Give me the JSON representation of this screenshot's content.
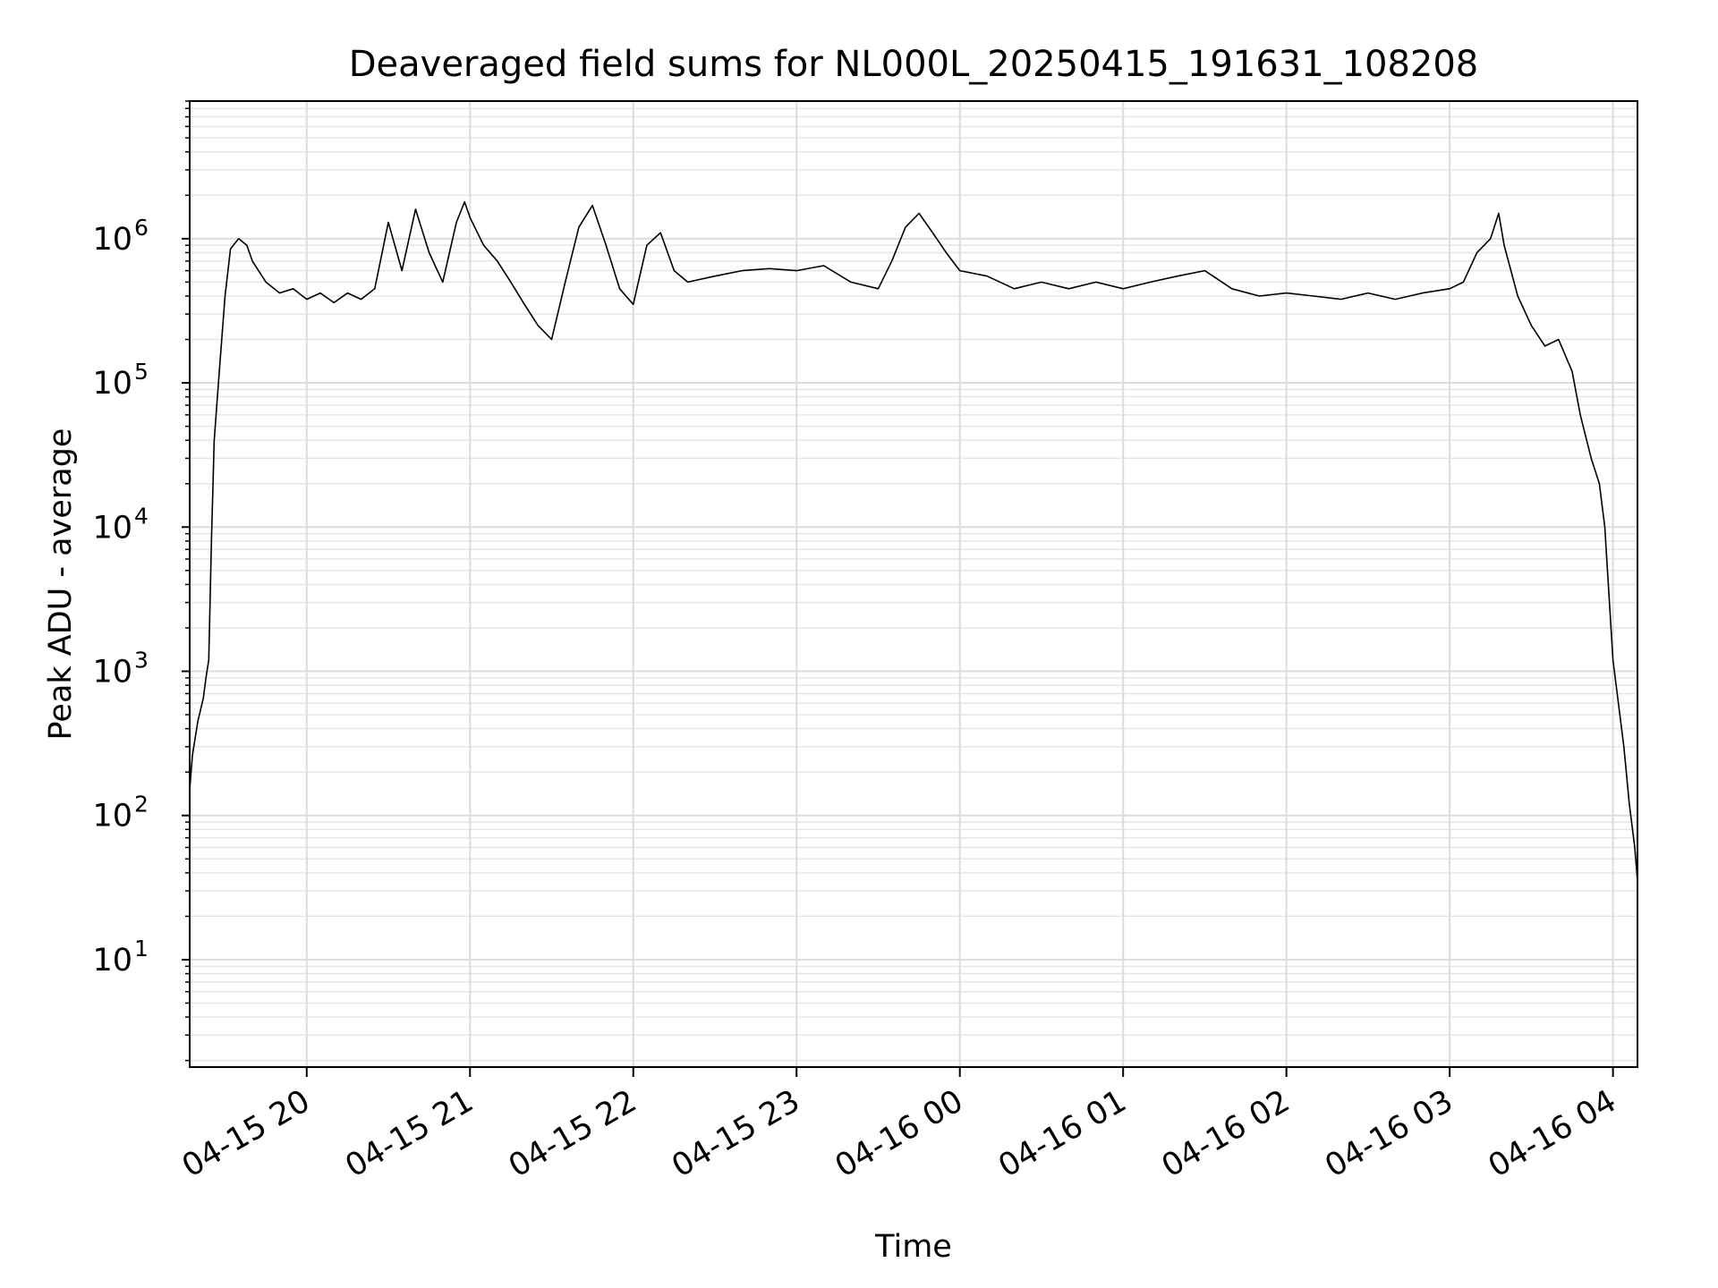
{
  "chart_data": {
    "type": "line",
    "title": "Deaveraged field sums for NL000L_20250415_191631_108208",
    "xlabel": "Time",
    "ylabel": "Peak ADU - average",
    "x_scale": "time",
    "y_scale": "log",
    "xlim": [
      "2025-04-15 19:17",
      "2025-04-16 04:09"
    ],
    "ylim": [
      1.8,
      9000000
    ],
    "x_ticks": [
      {
        "time": "2025-04-15 20:00",
        "label": "04-15 20"
      },
      {
        "time": "2025-04-15 21:00",
        "label": "04-15 21"
      },
      {
        "time": "2025-04-15 22:00",
        "label": "04-15 22"
      },
      {
        "time": "2025-04-15 23:00",
        "label": "04-15 23"
      },
      {
        "time": "2025-04-16 00:00",
        "label": "04-16 00"
      },
      {
        "time": "2025-04-16 01:00",
        "label": "04-16 01"
      },
      {
        "time": "2025-04-16 02:00",
        "label": "04-16 02"
      },
      {
        "time": "2025-04-16 03:00",
        "label": "04-16 03"
      },
      {
        "time": "2025-04-16 04:00",
        "label": "04-16 04"
      }
    ],
    "y_ticks": [
      {
        "value": 10,
        "base": "10",
        "exp": "1"
      },
      {
        "value": 100,
        "base": "10",
        "exp": "2"
      },
      {
        "value": 1000,
        "base": "10",
        "exp": "3"
      },
      {
        "value": 10000,
        "base": "10",
        "exp": "4"
      },
      {
        "value": 100000,
        "base": "10",
        "exp": "5"
      },
      {
        "value": 1000000,
        "base": "10",
        "exp": "6"
      }
    ],
    "grid": true,
    "series": [
      {
        "color": "#000000",
        "points": [
          [
            "2025-04-15 19:17",
            150
          ],
          [
            "2025-04-15 19:18",
            260
          ],
          [
            "2025-04-15 19:20",
            450
          ],
          [
            "2025-04-15 19:22",
            650
          ],
          [
            "2025-04-15 19:23",
            900
          ],
          [
            "2025-04-15 19:24",
            1200
          ],
          [
            "2025-04-15 19:25",
            8000
          ],
          [
            "2025-04-15 19:26",
            40000
          ],
          [
            "2025-04-15 19:28",
            130000
          ],
          [
            "2025-04-15 19:30",
            400000
          ],
          [
            "2025-04-15 19:32",
            850000
          ],
          [
            "2025-04-15 19:35",
            1000000
          ],
          [
            "2025-04-15 19:38",
            900000
          ],
          [
            "2025-04-15 19:40",
            700000
          ],
          [
            "2025-04-15 19:45",
            500000
          ],
          [
            "2025-04-15 19:50",
            420000
          ],
          [
            "2025-04-15 19:55",
            450000
          ],
          [
            "2025-04-15 20:00",
            380000
          ],
          [
            "2025-04-15 20:05",
            420000
          ],
          [
            "2025-04-15 20:10",
            360000
          ],
          [
            "2025-04-15 20:15",
            420000
          ],
          [
            "2025-04-15 20:20",
            380000
          ],
          [
            "2025-04-15 20:25",
            450000
          ],
          [
            "2025-04-15 20:30",
            1300000
          ],
          [
            "2025-04-15 20:35",
            600000
          ],
          [
            "2025-04-15 20:40",
            1600000
          ],
          [
            "2025-04-15 20:45",
            800000
          ],
          [
            "2025-04-15 20:50",
            500000
          ],
          [
            "2025-04-15 20:55",
            1300000
          ],
          [
            "2025-04-15 20:58",
            1800000
          ],
          [
            "2025-04-15 21:00",
            1400000
          ],
          [
            "2025-04-15 21:05",
            900000
          ],
          [
            "2025-04-15 21:10",
            700000
          ],
          [
            "2025-04-15 21:15",
            500000
          ],
          [
            "2025-04-15 21:20",
            350000
          ],
          [
            "2025-04-15 21:25",
            250000
          ],
          [
            "2025-04-15 21:30",
            200000
          ],
          [
            "2025-04-15 21:35",
            500000
          ],
          [
            "2025-04-15 21:40",
            1200000
          ],
          [
            "2025-04-15 21:45",
            1700000
          ],
          [
            "2025-04-15 21:50",
            900000
          ],
          [
            "2025-04-15 21:55",
            450000
          ],
          [
            "2025-04-15 22:00",
            350000
          ],
          [
            "2025-04-15 22:05",
            900000
          ],
          [
            "2025-04-15 22:10",
            1100000
          ],
          [
            "2025-04-15 22:15",
            600000
          ],
          [
            "2025-04-15 22:20",
            500000
          ],
          [
            "2025-04-15 22:30",
            550000
          ],
          [
            "2025-04-15 22:40",
            600000
          ],
          [
            "2025-04-15 22:50",
            620000
          ],
          [
            "2025-04-15 23:00",
            600000
          ],
          [
            "2025-04-15 23:10",
            650000
          ],
          [
            "2025-04-15 23:20",
            500000
          ],
          [
            "2025-04-15 23:30",
            450000
          ],
          [
            "2025-04-15 23:35",
            700000
          ],
          [
            "2025-04-15 23:40",
            1200000
          ],
          [
            "2025-04-15 23:45",
            1500000
          ],
          [
            "2025-04-15 23:50",
            1100000
          ],
          [
            "2025-04-15 23:55",
            800000
          ],
          [
            "2025-04-16 00:00",
            600000
          ],
          [
            "2025-04-16 00:10",
            550000
          ],
          [
            "2025-04-16 00:20",
            450000
          ],
          [
            "2025-04-16 00:30",
            500000
          ],
          [
            "2025-04-16 00:40",
            450000
          ],
          [
            "2025-04-16 00:50",
            500000
          ],
          [
            "2025-04-16 01:00",
            450000
          ],
          [
            "2025-04-16 01:10",
            500000
          ],
          [
            "2025-04-16 01:20",
            550000
          ],
          [
            "2025-04-16 01:30",
            600000
          ],
          [
            "2025-04-16 01:40",
            450000
          ],
          [
            "2025-04-16 01:50",
            400000
          ],
          [
            "2025-04-16 02:00",
            420000
          ],
          [
            "2025-04-16 02:10",
            400000
          ],
          [
            "2025-04-16 02:20",
            380000
          ],
          [
            "2025-04-16 02:30",
            420000
          ],
          [
            "2025-04-16 02:40",
            380000
          ],
          [
            "2025-04-16 02:50",
            420000
          ],
          [
            "2025-04-16 03:00",
            450000
          ],
          [
            "2025-04-16 03:05",
            500000
          ],
          [
            "2025-04-16 03:10",
            800000
          ],
          [
            "2025-04-16 03:15",
            1000000
          ],
          [
            "2025-04-16 03:18",
            1500000
          ],
          [
            "2025-04-16 03:20",
            900000
          ],
          [
            "2025-04-16 03:25",
            400000
          ],
          [
            "2025-04-16 03:30",
            250000
          ],
          [
            "2025-04-16 03:35",
            180000
          ],
          [
            "2025-04-16 03:40",
            200000
          ],
          [
            "2025-04-16 03:45",
            120000
          ],
          [
            "2025-04-16 03:48",
            60000
          ],
          [
            "2025-04-16 03:52",
            30000
          ],
          [
            "2025-04-16 03:55",
            20000
          ],
          [
            "2025-04-16 03:57",
            10000
          ],
          [
            "2025-04-16 04:00",
            1200
          ],
          [
            "2025-04-16 04:02",
            600
          ],
          [
            "2025-04-16 04:04",
            300
          ],
          [
            "2025-04-16 04:06",
            120
          ],
          [
            "2025-04-16 04:08",
            60
          ],
          [
            "2025-04-16 04:09",
            35
          ]
        ]
      }
    ]
  }
}
